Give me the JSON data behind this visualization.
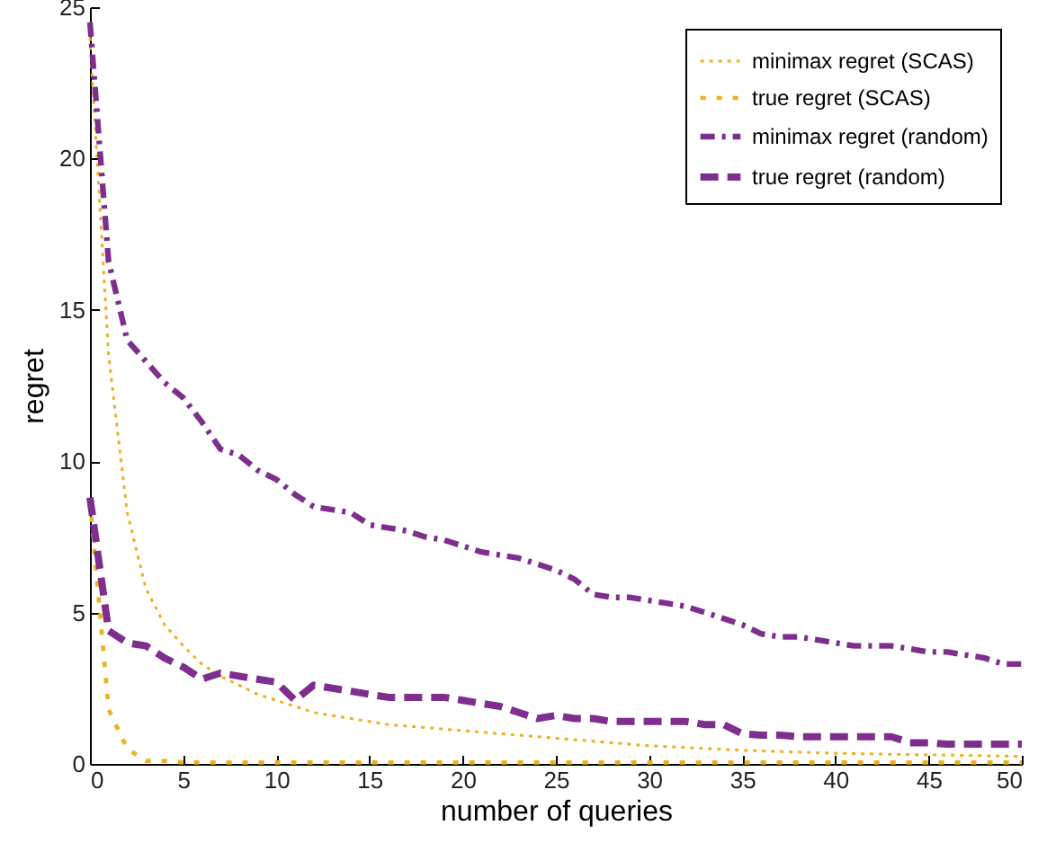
{
  "chart_data": {
    "type": "line",
    "xlabel": "number of queries",
    "ylabel": "regret",
    "xlim": [
      0,
      50
    ],
    "ylim": [
      0,
      25
    ],
    "xticks": [
      0,
      5,
      10,
      15,
      20,
      25,
      30,
      35,
      40,
      45,
      50
    ],
    "yticks": [
      0,
      5,
      10,
      15,
      20,
      25
    ],
    "grid": false,
    "legend": "top right",
    "marker": "none",
    "series": [
      {
        "name": "minimax regret (SCAS)",
        "color": "#edb120",
        "line_style": "dotted",
        "x": [
          0,
          1,
          2,
          3,
          4,
          5,
          6,
          7,
          8,
          9,
          10,
          11,
          12,
          13,
          14,
          15,
          16,
          17,
          18,
          19,
          20,
          22,
          25,
          30,
          35,
          40,
          45,
          50
        ],
        "values": [
          24,
          13.5,
          8.3,
          5.8,
          4.6,
          3.9,
          3.3,
          2.9,
          2.6,
          2.3,
          2.1,
          1.9,
          1.7,
          1.6,
          1.5,
          1.4,
          1.3,
          1.25,
          1.2,
          1.15,
          1.1,
          1.0,
          0.85,
          0.6,
          0.45,
          0.35,
          0.3,
          0.25
        ]
      },
      {
        "name": "true regret (SCAS)",
        "color": "#edb120",
        "line_style": "dotted",
        "x": [
          0,
          1,
          2,
          3,
          4,
          5,
          50
        ],
        "values": [
          8.7,
          1.8,
          0.5,
          0.1,
          0.1,
          0.05,
          0.05
        ]
      },
      {
        "name": "minimax regret (random)",
        "color": "#7e2f8e",
        "line_style": "dashdot",
        "x": [
          0,
          1,
          2,
          3,
          4,
          5,
          6,
          7,
          8,
          9,
          10,
          11,
          12,
          13,
          14,
          15,
          16,
          17,
          18,
          19,
          20,
          21,
          22,
          23,
          24,
          25,
          26,
          27,
          28,
          29,
          30,
          31,
          32,
          33,
          34,
          35,
          36,
          37,
          38,
          39,
          40,
          41,
          42,
          43,
          44,
          45,
          46,
          47,
          48,
          49,
          50
        ],
        "values": [
          24.5,
          16.6,
          14,
          13.3,
          12.6,
          12.1,
          11.3,
          10.4,
          10.2,
          9.7,
          9.4,
          8.9,
          8.5,
          8.4,
          8.3,
          7.9,
          7.8,
          7.7,
          7.5,
          7.4,
          7.2,
          7.0,
          6.9,
          6.8,
          6.6,
          6.4,
          6.1,
          5.6,
          5.5,
          5.5,
          5.4,
          5.3,
          5.2,
          5.0,
          4.8,
          4.6,
          4.3,
          4.2,
          4.2,
          4.1,
          4.0,
          3.9,
          3.9,
          3.9,
          3.8,
          3.7,
          3.7,
          3.6,
          3.5,
          3.3,
          3.3
        ]
      },
      {
        "name": "true regret (random)",
        "color": "#7e2f8e",
        "line_style": "dashed",
        "x": [
          0,
          1,
          2,
          3,
          4,
          5,
          6,
          7,
          8,
          9,
          10,
          11,
          12,
          13,
          14,
          15,
          16,
          17,
          18,
          19,
          20,
          21,
          22,
          23,
          24,
          25,
          26,
          27,
          28,
          29,
          30,
          31,
          32,
          33,
          34,
          35,
          36,
          37,
          38,
          39,
          40,
          41,
          42,
          43,
          44,
          45,
          46,
          47,
          48,
          49,
          50
        ],
        "values": [
          8.8,
          4.4,
          4.0,
          3.9,
          3.5,
          3.2,
          2.8,
          3.0,
          2.9,
          2.8,
          2.7,
          2.1,
          2.6,
          2.5,
          2.4,
          2.3,
          2.2,
          2.2,
          2.2,
          2.2,
          2.1,
          2.0,
          1.9,
          1.7,
          1.5,
          1.6,
          1.5,
          1.5,
          1.4,
          1.4,
          1.4,
          1.4,
          1.4,
          1.3,
          1.3,
          1.0,
          0.95,
          0.95,
          0.9,
          0.9,
          0.9,
          0.9,
          0.9,
          0.9,
          0.7,
          0.7,
          0.65,
          0.65,
          0.65,
          0.65,
          0.65
        ]
      }
    ]
  }
}
